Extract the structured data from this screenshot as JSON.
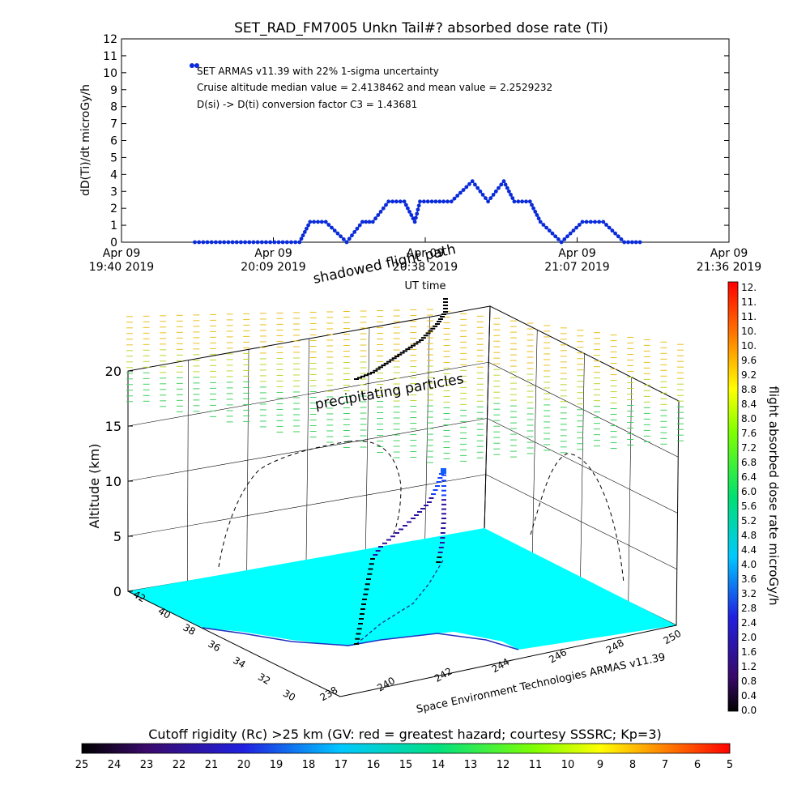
{
  "chart_data": [
    {
      "type": "line",
      "title": "SET_RAD_FM7005  Unkn Tail#? absorbed dose rate (Ti)",
      "ylabel": "dD(Ti)/dt microGy/h",
      "xlabel": "UT time",
      "ylim": [
        0,
        12
      ],
      "yticks": [
        "0",
        "1",
        "2",
        "3",
        "4",
        "5",
        "6",
        "7",
        "8",
        "9",
        "10",
        "11",
        "12"
      ],
      "xticks": [
        {
          "date": "Apr 09",
          "time": "19:40 2019"
        },
        {
          "date": "Apr 09",
          "time": "20:09 2019"
        },
        {
          "date": "Apr 09",
          "time": "20:38 2019"
        },
        {
          "date": "Apr 09",
          "time": "21:07 2019"
        },
        {
          "date": "Apr 09",
          "time": "21:36 2019"
        }
      ],
      "annotations": [
        "SET ARMAS v11.39 with 22% 1-sigma uncertainty",
        "Cruise altitude median value = 2.4138462 and mean value = 2.2529232",
        "D(si) -> D(ti) conversion factor C3 = 1.43681"
      ],
      "series": [
        {
          "color": "#0a2bd9",
          "x": [
            "19:54",
            "19:58",
            "20:02",
            "20:06",
            "20:10",
            "20:14",
            "20:16",
            "20:19",
            "20:23",
            "20:26",
            "20:28",
            "20:31",
            "20:34",
            "20:36",
            "20:37",
            "20:40",
            "20:43",
            "20:47",
            "20:50",
            "20:53",
            "20:55",
            "20:58",
            "21:00",
            "21:04",
            "21:08",
            "21:12",
            "21:16",
            "21:19"
          ],
          "y": [
            0,
            0,
            0,
            0,
            0,
            0,
            1.2,
            1.2,
            0,
            1.2,
            1.2,
            2.4,
            2.4,
            1.2,
            2.4,
            2.4,
            2.4,
            3.6,
            2.4,
            3.6,
            2.4,
            2.4,
            1.2,
            0,
            1.2,
            1.2,
            0,
            0
          ]
        }
      ]
    },
    {
      "type": "scatter",
      "subtype": "3d-flight-track",
      "zlabel": "Altitude (km)",
      "zticks": [
        "0",
        "5",
        "10",
        "15",
        "20"
      ],
      "ylabel_ticks": [
        "42",
        "40",
        "38",
        "36",
        "34",
        "32",
        "30"
      ],
      "xlabel_ticks": [
        "238",
        "240",
        "242",
        "244",
        "246",
        "248",
        "250"
      ],
      "credit": "Space Environment Technologies ARMAS v11.39",
      "annotations": [
        "shadowed flight path",
        "precipitating particles"
      ],
      "colorbar": {
        "label": "flight absorbed dose rate microGy/h",
        "ticks": [
          "12.",
          "11.",
          "11.",
          "10.",
          "10.",
          "9.6",
          "9.2",
          "8.8",
          "8.4",
          "8.0",
          "7.6",
          "7.2",
          "6.8",
          "6.4",
          "6.0",
          "5.6",
          "5.2",
          "4.8",
          "4.4",
          "4.0",
          "3.6",
          "3.2",
          "2.8",
          "2.4",
          "2.0",
          "1.6",
          "1.2",
          "0.8",
          "0.4",
          "0.0"
        ]
      }
    },
    {
      "type": "heatmap",
      "subtype": "colorbar",
      "title": "Cutoff rigidity (Rc) >25 km (GV: red = greatest hazard; courtesy SSSRC; Kp=3)",
      "ticks": [
        "25",
        "24",
        "23",
        "22",
        "21",
        "20",
        "19",
        "18",
        "17",
        "16",
        "15",
        "14",
        "13",
        "12",
        "11",
        "10",
        "9",
        "8",
        "7",
        "6",
        "5"
      ]
    }
  ]
}
